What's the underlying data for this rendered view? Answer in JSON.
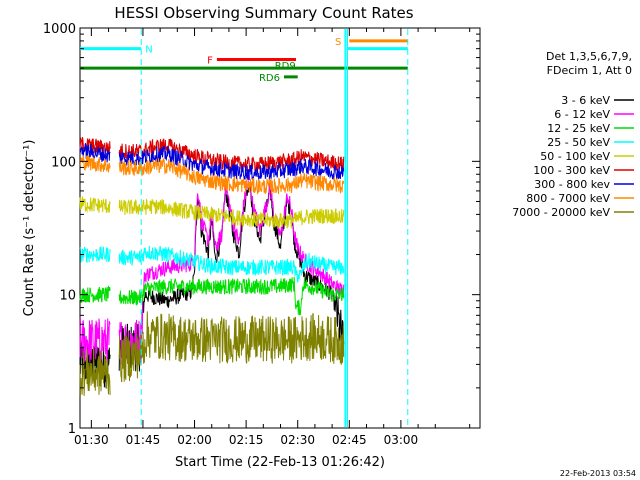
{
  "chart_data": {
    "type": "line",
    "title": "HESSI Observing Summary Count Rates",
    "xlabel": "Start Time (22-Feb-13 01:26:42)",
    "ylabel": "Count Rate (s⁻¹ detector⁻¹)",
    "footer": "22-Feb-2013 03:54",
    "yscale": "log",
    "ylim": [
      1,
      1000
    ],
    "xlim_min": [
      86.7,
      203
    ],
    "x_ticks": [
      {
        "t": 90,
        "label": "01:30"
      },
      {
        "t": 105,
        "label": "01:45"
      },
      {
        "t": 120,
        "label": "02:00"
      },
      {
        "t": 135,
        "label": "02:15"
      },
      {
        "t": 150,
        "label": "02:30"
      },
      {
        "t": 165,
        "label": "02:45"
      },
      {
        "t": 180,
        "label": "03:00"
      }
    ],
    "y_ticks": [
      {
        "v": 1,
        "label": "1"
      },
      {
        "v": 10,
        "label": "10"
      },
      {
        "v": 100,
        "label": "100"
      },
      {
        "v": 1000,
        "label": "1000"
      }
    ],
    "legend_title": [
      "Det 1,3,5,6,7,9,",
      "FDecim 1, Att 0"
    ],
    "legend_placement": "right",
    "gaps": [
      [
        95.5,
        98.0
      ],
      [
        163.5,
        164.5
      ]
    ],
    "series": [
      {
        "name": "3 - 6 keV",
        "color": "#000000",
        "points": [
          [
            86.7,
            3
          ],
          [
            95.5,
            3
          ],
          [
            95.5,
            5
          ],
          [
            98.0,
            5
          ],
          [
            98.0,
            4
          ],
          [
            104.5,
            4
          ],
          [
            105.5,
            10
          ],
          [
            112,
            9
          ],
          [
            119,
            10.5
          ],
          [
            120,
            14
          ],
          [
            121,
            55
          ],
          [
            122,
            30
          ],
          [
            124,
            20
          ],
          [
            125,
            35
          ],
          [
            126,
            18
          ],
          [
            128,
            26
          ],
          [
            129,
            60
          ],
          [
            131,
            30
          ],
          [
            133,
            20
          ],
          [
            135,
            55
          ],
          [
            136,
            70
          ],
          [
            137,
            40
          ],
          [
            139,
            25
          ],
          [
            141,
            45
          ],
          [
            142,
            60
          ],
          [
            143,
            35
          ],
          [
            145,
            22
          ],
          [
            146,
            35
          ],
          [
            147,
            50
          ],
          [
            148,
            40
          ],
          [
            149,
            25
          ],
          [
            150,
            20
          ],
          [
            152,
            14
          ],
          [
            154,
            13
          ],
          [
            156,
            12
          ],
          [
            158,
            11
          ],
          [
            160,
            10
          ],
          [
            161,
            8
          ],
          [
            162,
            6
          ],
          [
            163.5,
            4
          ]
        ]
      },
      {
        "name": "6 - 12 keV",
        "color": "#ff00ff",
        "points": [
          [
            86.7,
            4.5
          ],
          [
            95.5,
            4.5
          ],
          [
            98.0,
            4.5
          ],
          [
            104.5,
            4.5
          ],
          [
            105.5,
            14
          ],
          [
            112,
            16
          ],
          [
            119,
            17
          ],
          [
            120,
            20
          ],
          [
            121,
            60
          ],
          [
            122,
            35
          ],
          [
            124,
            25
          ],
          [
            125,
            40
          ],
          [
            126,
            22
          ],
          [
            128,
            28
          ],
          [
            129,
            65
          ],
          [
            131,
            35
          ],
          [
            133,
            24
          ],
          [
            135,
            60
          ],
          [
            136,
            75
          ],
          [
            137,
            45
          ],
          [
            139,
            30
          ],
          [
            141,
            48
          ],
          [
            142,
            65
          ],
          [
            143,
            40
          ],
          [
            145,
            27
          ],
          [
            146,
            38
          ],
          [
            147,
            55
          ],
          [
            148,
            45
          ],
          [
            149,
            28
          ],
          [
            150,
            22
          ],
          [
            152,
            18
          ],
          [
            154,
            16
          ],
          [
            156,
            15
          ],
          [
            158,
            13.5
          ],
          [
            160,
            12
          ],
          [
            162,
            11
          ],
          [
            163.5,
            11
          ]
        ]
      },
      {
        "name": "12 - 25 keV",
        "color": "#00dd00",
        "points": [
          [
            86.7,
            10
          ],
          [
            95.5,
            10
          ],
          [
            98.0,
            9.5
          ],
          [
            104.5,
            9.5
          ],
          [
            105.5,
            11
          ],
          [
            112,
            11.5
          ],
          [
            120,
            11.5
          ],
          [
            128,
            11.5
          ],
          [
            136,
            11.5
          ],
          [
            144,
            11.5
          ],
          [
            149,
            12
          ],
          [
            149.5,
            8
          ],
          [
            151,
            8
          ],
          [
            151.5,
            12
          ],
          [
            156,
            11
          ],
          [
            160,
            10
          ],
          [
            163.5,
            10
          ]
        ]
      },
      {
        "name": "25 - 50 keV",
        "color": "#00ffff",
        "points": [
          [
            86.7,
            20
          ],
          [
            95.5,
            20
          ],
          [
            98.0,
            19
          ],
          [
            104.5,
            19
          ],
          [
            105.5,
            21
          ],
          [
            112,
            20
          ],
          [
            119,
            18
          ],
          [
            124,
            16.5
          ],
          [
            130,
            16
          ],
          [
            136,
            16
          ],
          [
            144,
            16
          ],
          [
            149,
            16
          ],
          [
            149.5,
            14
          ],
          [
            151,
            14
          ],
          [
            151.5,
            16
          ],
          [
            153,
            18
          ],
          [
            156,
            17
          ],
          [
            160,
            16
          ],
          [
            163.5,
            16
          ]
        ]
      },
      {
        "name": "50 - 100 keV",
        "color": "#cccc00",
        "points": [
          [
            86.7,
            48
          ],
          [
            95.5,
            46
          ],
          [
            98.0,
            45
          ],
          [
            104.5,
            45
          ],
          [
            108,
            46
          ],
          [
            112,
            45
          ],
          [
            118,
            42
          ],
          [
            124,
            40
          ],
          [
            132,
            38
          ],
          [
            140,
            36
          ],
          [
            149,
            36
          ],
          [
            151,
            38
          ],
          [
            156,
            39
          ],
          [
            160,
            39
          ],
          [
            163.5,
            38
          ]
        ]
      },
      {
        "name": "100 - 300 keV",
        "color": "#dd0000",
        "points": [
          [
            86.7,
            135
          ],
          [
            95.5,
            125
          ],
          [
            98.0,
            120
          ],
          [
            104.5,
            118
          ],
          [
            108,
            128
          ],
          [
            112,
            132
          ],
          [
            116,
            120
          ],
          [
            120,
            110
          ],
          [
            126,
            100
          ],
          [
            132,
            96
          ],
          [
            138,
            94
          ],
          [
            144,
            98
          ],
          [
            149,
            103
          ],
          [
            151,
            108
          ],
          [
            154,
            105
          ],
          [
            160,
            98
          ],
          [
            163.5,
            95
          ]
        ]
      },
      {
        "name": "300 - 800 kev",
        "color": "#0000dd",
        "points": [
          [
            86.7,
            122
          ],
          [
            95.5,
            110
          ],
          [
            98.0,
            107
          ],
          [
            104.5,
            105
          ],
          [
            108,
            112
          ],
          [
            112,
            114
          ],
          [
            116,
            104
          ],
          [
            120,
            94
          ],
          [
            126,
            88
          ],
          [
            132,
            84
          ],
          [
            138,
            82
          ],
          [
            144,
            84
          ],
          [
            149,
            88
          ],
          [
            151,
            92
          ],
          [
            154,
            90
          ],
          [
            160,
            84
          ],
          [
            163.5,
            82
          ]
        ]
      },
      {
        "name": "800 - 7000 keV",
        "color": "#ff8800",
        "points": [
          [
            86.7,
            100
          ],
          [
            95.5,
            92
          ],
          [
            98.0,
            90
          ],
          [
            104.5,
            88
          ],
          [
            108,
            92
          ],
          [
            112,
            93
          ],
          [
            116,
            85
          ],
          [
            120,
            76
          ],
          [
            126,
            70
          ],
          [
            132,
            67
          ],
          [
            138,
            65
          ],
          [
            144,
            65
          ],
          [
            149,
            67
          ],
          [
            151,
            72
          ],
          [
            154,
            70
          ],
          [
            160,
            67
          ],
          [
            163.5,
            65
          ]
        ]
      },
      {
        "name": "7000 - 20000 keV",
        "color": "#808000",
        "points": [
          [
            86.7,
            2.6
          ],
          [
            95.5,
            2.6
          ],
          [
            98.0,
            3.2
          ],
          [
            104.5,
            3.6
          ],
          [
            106,
            5
          ],
          [
            112,
            4.8
          ],
          [
            120,
            4.6
          ],
          [
            128,
            4.6
          ],
          [
            136,
            4.6
          ],
          [
            144,
            4.6
          ],
          [
            150,
            4.6
          ],
          [
            152,
            4.8
          ],
          [
            156,
            4.8
          ],
          [
            160,
            4.6
          ],
          [
            163.5,
            4.4
          ]
        ]
      }
    ],
    "flag_bars": [
      {
        "label": "N",
        "color": "#00ffff",
        "t0": 86.7,
        "t1": 104.5,
        "level": 700
      },
      {
        "label": "",
        "color": "#00ffff",
        "t0": 164.5,
        "t1": 182,
        "level": 700
      },
      {
        "label": "F",
        "color": "#ff0000",
        "t0": 126.5,
        "t1": 149.5,
        "level": 580
      },
      {
        "label": "S",
        "color": "#ff8800",
        "t0": 165,
        "t1": 182,
        "level": 800
      },
      {
        "label": "RD9",
        "color": "#008800",
        "t0": 86.7,
        "t1": 182,
        "level": 500
      },
      {
        "label": "RD6",
        "color": "#008800",
        "t0": 146,
        "t1": 150,
        "level": 430
      }
    ],
    "vlines": [
      {
        "t": 104.5,
        "color": "#00ffff",
        "style": "dashed"
      },
      {
        "t": 182,
        "color": "#00ffff",
        "style": "dashed"
      },
      {
        "t": 163.8,
        "color": "#00ffff",
        "style": "solid"
      },
      {
        "t": 164.4,
        "color": "#00ffff",
        "style": "solid"
      }
    ]
  }
}
